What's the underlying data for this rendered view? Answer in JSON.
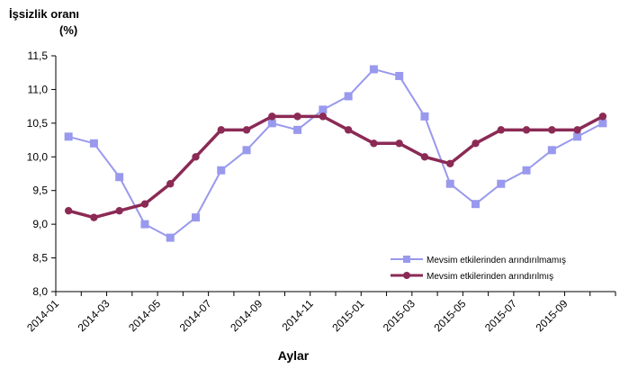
{
  "chart_data": {
    "type": "line",
    "title": "İşsizlik oranı",
    "subtitle": "(%)",
    "xlabel": "Aylar",
    "ylabel": "",
    "ylim": [
      8.0,
      11.5
    ],
    "yticks": [
      "8,0",
      "8,5",
      "9,0",
      "9,5",
      "10,0",
      "10,5",
      "11,0",
      "11,5"
    ],
    "ytick_values": [
      8.0,
      8.5,
      9.0,
      9.5,
      10.0,
      10.5,
      11.0,
      11.5
    ],
    "categories": [
      "2014-01",
      "2014-02",
      "2014-03",
      "2014-04",
      "2014-05",
      "2014-06",
      "2014-07",
      "2014-08",
      "2014-09",
      "2014-10",
      "2014-11",
      "2014-12",
      "2015-01",
      "2015-02",
      "2015-03",
      "2015-04",
      "2015-05",
      "2015-06",
      "2015-07",
      "2015-08",
      "2015-09",
      "2015-10"
    ],
    "xtick_labels": [
      "2014-01",
      "2014-03",
      "2014-05",
      "2014-07",
      "2014-09",
      "2014-11",
      "2015-01",
      "2015-03",
      "2015-05",
      "2015-07",
      "2015-09"
    ],
    "grid": false,
    "legend_position": "bottom-right",
    "series": [
      {
        "name": "Mevsim etkilerinden arındırılmamış",
        "color": "#9999ee",
        "marker": "square",
        "values": [
          10.3,
          10.2,
          9.7,
          9.0,
          8.8,
          9.1,
          9.8,
          10.1,
          10.5,
          10.4,
          10.7,
          10.9,
          11.3,
          11.2,
          10.6,
          9.6,
          9.3,
          9.6,
          9.8,
          10.1,
          10.3,
          10.5
        ]
      },
      {
        "name": "Mevsim etkilerinden arındırılmış",
        "color": "#8b2a55",
        "marker": "circle",
        "values": [
          9.2,
          9.1,
          9.2,
          9.3,
          9.6,
          10.0,
          10.4,
          10.4,
          10.6,
          10.6,
          10.6,
          10.4,
          10.2,
          10.2,
          10.0,
          9.9,
          10.2,
          10.4,
          10.4,
          10.4,
          10.4,
          10.6
        ]
      }
    ]
  }
}
